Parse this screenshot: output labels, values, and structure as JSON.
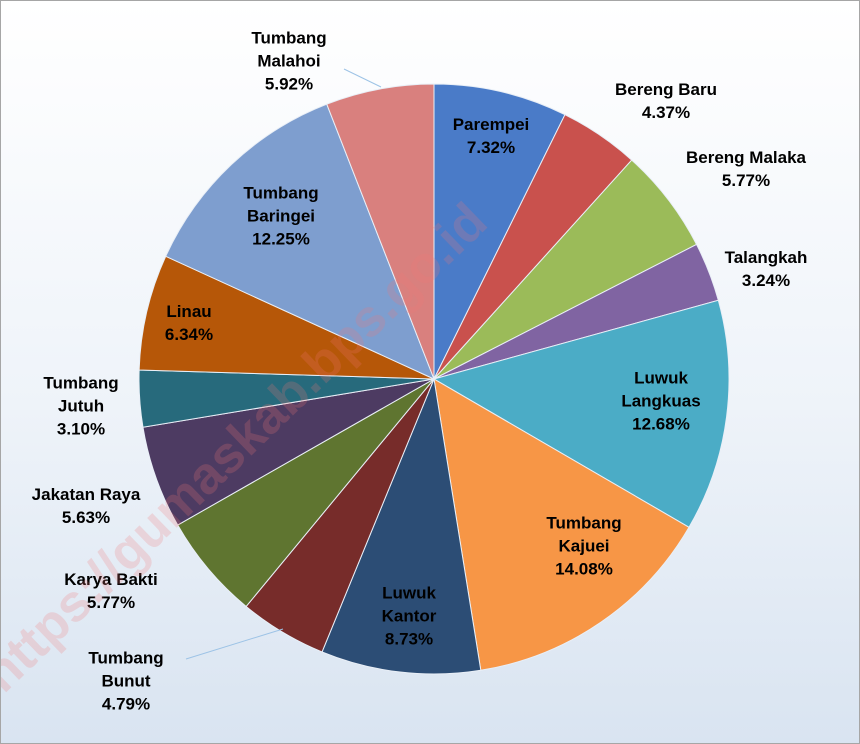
{
  "chart_data": {
    "type": "pie",
    "categories": [
      "Parempei",
      "Bereng Baru",
      "Bereng Malaka",
      "Talangkah",
      "Luwuk Langkuas",
      "Tumbang Kajuei",
      "Luwuk Kantor",
      "Tumbang Bunut",
      "Karya Bakti",
      "Jakatan Raya",
      "Tumbang Jutuh",
      "Linau",
      "Tumbang Baringei",
      "Tumbang Malahoi"
    ],
    "values": [
      7.32,
      4.37,
      5.77,
      3.24,
      12.68,
      14.08,
      8.73,
      4.79,
      5.77,
      5.63,
      3.1,
      6.34,
      12.25,
      5.92
    ],
    "value_labels": [
      "7.32%",
      "4.37%",
      "5.77%",
      "3.24%",
      "12.68%",
      "14.08%",
      "8.73%",
      "4.79%",
      "5.77%",
      "5.63%",
      "3.10%",
      "6.34%",
      "12.25%",
      "5.92%"
    ],
    "colors": [
      "#4a7bc8",
      "#c9514d",
      "#9bbb59",
      "#8064a2",
      "#4bacc6",
      "#f79646",
      "#2c4d75",
      "#772c2a",
      "#5f7530",
      "#4d3b62",
      "#276a7c",
      "#b65708",
      "#7e9ecf",
      "#d9807e"
    ],
    "watermark": "https://gumaskab.bps.go.id"
  }
}
